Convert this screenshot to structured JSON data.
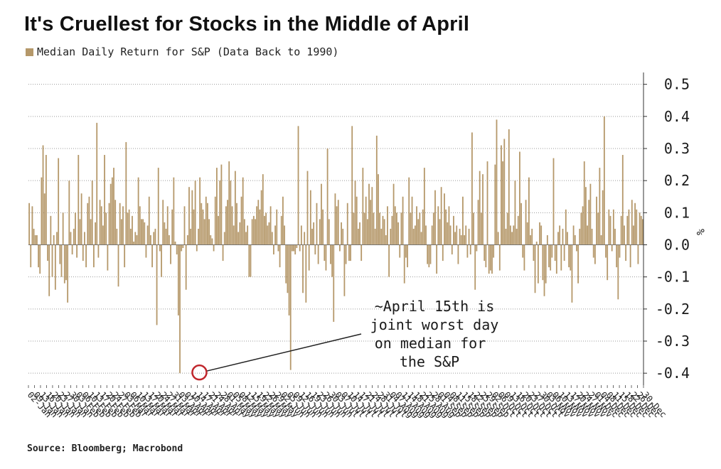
{
  "title": "It's Cruellest for Stocks in the Middle of April",
  "legend": {
    "label": "Median Daily Return for S&P (Data Back to 1990)",
    "color": "#b5986a"
  },
  "source": "Source: Bloomberg; Macrobond",
  "chart_data": {
    "type": "bar",
    "ylabel": "%",
    "ylim": [
      -0.45,
      0.55
    ],
    "yticks": [
      0.5,
      0.4,
      0.3,
      0.2,
      0.1,
      0.0,
      -0.1,
      -0.2,
      -0.3,
      -0.4
    ],
    "ytick_labels": [
      "0.5",
      "0.4",
      "0.3",
      "0.2",
      "0.1",
      "0.0",
      "-0.1",
      "-0.2",
      "-0.3",
      "-0.4"
    ],
    "grid": true,
    "bar_color": "#b5986a",
    "xtick_labels": [
      "02-Jan",
      "09-Jan",
      "13-Jan",
      "16-Jan",
      "20-Jan",
      "23-Jan",
      "27-Jan",
      "30-Jan",
      "03-Feb",
      "06-Feb",
      "10-Feb",
      "13-Feb",
      "17-Feb",
      "20-Feb",
      "24-Feb",
      "27-Feb",
      "03-Mar",
      "06-Mar",
      "10-Mar",
      "13-Mar",
      "17-Mar",
      "20-Mar",
      "24-Mar",
      "27-Mar",
      "31-Mar",
      "03-Apr",
      "07-Apr",
      "10-Apr",
      "14-Apr",
      "17-Apr",
      "21-Apr",
      "24-Apr",
      "28-Apr",
      "01-May",
      "05-May",
      "08-May",
      "12-May",
      "15-May",
      "19-May",
      "22-May",
      "26-May",
      "29-May",
      "02-Jun",
      "05-Jun",
      "09-Jun",
      "12-Jun",
      "16-Jun",
      "19-Jun",
      "23-Jun",
      "26-Jun",
      "30-Jun",
      "03-Jul",
      "07-Jul",
      "10-Jul",
      "14-Jul",
      "17-Jul",
      "21-Jul",
      "24-Jul",
      "28-Jul",
      "31-Jul",
      "04-Aug",
      "07-Aug",
      "11-Aug",
      "14-Aug",
      "18-Aug",
      "21-Aug",
      "25-Aug",
      "28-Aug",
      "01-Sep",
      "04-Sep",
      "08-Sep",
      "11-Sep",
      "15-Sep",
      "18-Sep",
      "22-Sep",
      "25-Sep",
      "29-Sep",
      "02-Oct",
      "06-Oct",
      "09-Oct",
      "13-Oct",
      "16-Oct",
      "20-Oct",
      "23-Oct",
      "27-Oct",
      "30-Oct",
      "03-Nov",
      "06-Nov",
      "10-Nov",
      "13-Nov",
      "17-Nov",
      "20-Nov",
      "24-Nov",
      "27-Nov",
      "01-Dec",
      "04-Dec",
      "08-Dec",
      "11-Dec",
      "15-Dec",
      "18-Dec",
      "22-Dec",
      "26-Dec",
      "30-Dec"
    ],
    "values": [
      0.13,
      -0.07,
      0.12,
      0.05,
      0.03,
      0.03,
      -0.07,
      -0.09,
      0.21,
      0.31,
      0.16,
      0.28,
      -0.05,
      -0.16,
      0.09,
      -0.1,
      0.03,
      -0.14,
      0.04,
      0.27,
      -0.06,
      -0.1,
      0.1,
      -0.12,
      -0.11,
      -0.18,
      0.2,
      0.04,
      -0.03,
      0.05,
      0.1,
      -0.04,
      0.28,
      0.08,
      0.16,
      -0.05,
      0.04,
      -0.07,
      0.13,
      0.15,
      0.08,
      0.2,
      -0.07,
      0.07,
      0.38,
      -0.04,
      0.14,
      0.12,
      0.06,
      0.28,
      0.1,
      -0.08,
      0.13,
      0.19,
      0.21,
      0.24,
      0.14,
      0.05,
      -0.13,
      0.13,
      0.08,
      0.12,
      -0.07,
      0.32,
      0.1,
      0.11,
      0.05,
      0.09,
      0.01,
      0.04,
      0.03,
      0.21,
      0.12,
      0.08,
      0.08,
      0.07,
      -0.04,
      0.06,
      0.15,
      0.03,
      -0.07,
      0.04,
      0.05,
      -0.25,
      0.24,
      -0.02,
      -0.1,
      0.14,
      0.07,
      0.05,
      0.12,
      0.03,
      -0.06,
      0.11,
      0.21,
      0.01,
      -0.03,
      -0.22,
      -0.4,
      -0.02,
      -0.01,
      0.12,
      -0.14,
      0.03,
      0.18,
      0.05,
      0.17,
      0.11,
      0.2,
      -0.02,
      0.05,
      0.21,
      0.13,
      0.11,
      0.08,
      0.15,
      0.13,
      0.08,
      0.03,
      0.02,
      -0.02,
      0.15,
      0.24,
      0.09,
      0.2,
      0.25,
      -0.05,
      0.04,
      0.12,
      0.14,
      0.26,
      0.2,
      0.12,
      0.06,
      0.23,
      0.13,
      0.04,
      0.07,
      0.15,
      0.21,
      0.08,
      0.04,
      0.06,
      -0.1,
      -0.1,
      0.08,
      0.09,
      0.08,
      0.12,
      0.14,
      0.11,
      0.17,
      0.22,
      0.09,
      0.1,
      0.06,
      0.07,
      0.12,
      0.04,
      -0.03,
      0.06,
      0.11,
      -0.02,
      -0.07,
      0.09,
      0.15,
      0.06,
      -0.12,
      -0.15,
      -0.22,
      -0.39,
      -0.02,
      -0.02,
      -0.03,
      -0.01,
      0.37,
      -0.02,
      0.06,
      -0.15,
      0.04,
      -0.18,
      0.23,
      -0.08,
      0.17,
      0.05,
      0.07,
      -0.03,
      0.13,
      -0.06,
      0.08,
      0.19,
      0.11,
      -0.05,
      -0.08,
      0.3,
      0.08,
      -0.06,
      -0.1,
      -0.24,
      0.16,
      0.12,
      0.14,
      -0.02,
      0.07,
      0.05,
      -0.16,
      -0.06,
      0.13,
      -0.05,
      -0.05,
      0.37,
      0.1,
      0.2,
      0.15,
      0.05,
      0.07,
      -0.05,
      0.24,
      0.1,
      0.15,
      0.08,
      0.19,
      0.14,
      0.18,
      0.1,
      0.05,
      0.34,
      0.22,
      0.1,
      0.05,
      0.09,
      0.08,
      0.03,
      0.12,
      -0.1,
      0.05,
      0.09,
      0.19,
      0.12,
      0.1,
      0.07,
      -0.04,
      0.1,
      0.15,
      -0.12,
      -0.04,
      -0.07,
      0.21,
      0.1,
      0.15,
      0.05,
      0.06,
      0.12,
      0.08,
      0.1,
      0.04,
      0.11,
      0.24,
      0.06,
      -0.06,
      -0.07,
      -0.06,
      0.06,
      0.1,
      0.17,
      -0.09,
      0.12,
      0.08,
      0.18,
      -0.05,
      0.16,
      0.11,
      0.07,
      0.12,
      0.06,
      -0.03,
      0.09,
      0.04,
      0.06,
      -0.06,
      0.05,
      0.03,
      0.15,
      0.03,
      0.06,
      -0.04,
      0.05,
      -0.03,
      0.35,
      0.1,
      -0.14,
      -0.02,
      0.14,
      0.23,
      0.1,
      0.22,
      -0.05,
      -0.07,
      0.26,
      -0.09,
      -0.08,
      -0.09,
      -0.04,
      0.25,
      0.39,
      0.04,
      -0.08,
      0.31,
      0.26,
      0.33,
      0.05,
      0.1,
      0.36,
      0.06,
      0.04,
      0.06,
      0.2,
      0.05,
      0.09,
      0.29,
      0.13,
      -0.04,
      -0.08,
      0.14,
      0.07,
      0.21,
      0.03,
      0.05,
      -0.05,
      -0.15,
      0.01,
      -0.12,
      0.07,
      0.06,
      -0.11,
      -0.16,
      -0.12,
      0.03,
      -0.07,
      -0.08,
      -0.04,
      0.27,
      -0.05,
      -0.09,
      0.04,
      0.06,
      -0.08,
      0.05,
      -0.05,
      0.11,
      0.04,
      -0.07,
      -0.08,
      -0.18,
      0.06,
      0.03,
      -0.02,
      -0.12,
      0.05,
      0.1,
      0.12,
      0.26,
      0.18,
      0.06,
      0.14,
      0.19,
      0.05,
      -0.04,
      -0.06,
      0.15,
      0.1,
      0.24,
      0.03,
      0.17,
      0.4,
      -0.04,
      -0.11,
      0.11,
      0.09,
      -0.02,
      0.11,
      0.05,
      -0.07,
      -0.17,
      -0.04,
      0.09,
      0.28,
      0.06,
      -0.05,
      0.09,
      0.11,
      -0.07,
      0.14,
      0.06,
      0.13,
      0.11,
      -0.06,
      0.1,
      0.09,
      0.08
    ],
    "annotation": {
      "text_lines": [
        "~April 15th is",
        "joint worst day",
        "on median for",
        "the S&P"
      ],
      "target_label": "14-Apr",
      "target_value": -0.4,
      "circle_color": "#c0262c"
    }
  }
}
